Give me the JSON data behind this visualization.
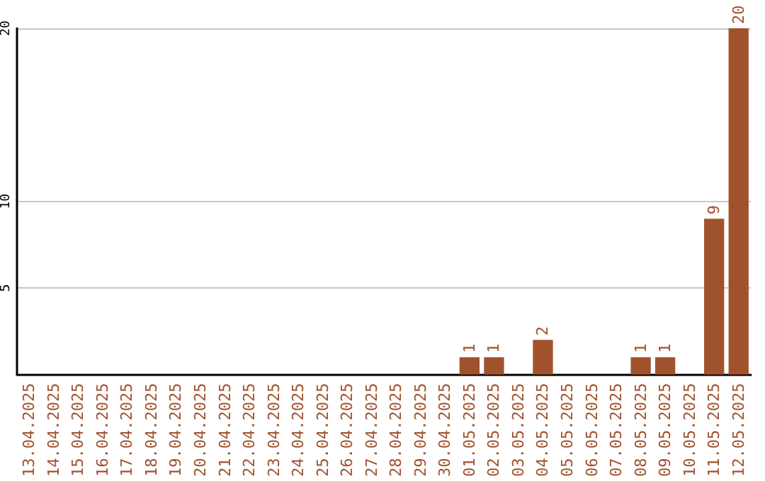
{
  "chart_data": {
    "type": "bar",
    "categories": [
      "13.04.2025",
      "14.04.2025",
      "15.04.2025",
      "16.04.2025",
      "17.04.2025",
      "18.04.2025",
      "19.04.2025",
      "20.04.2025",
      "21.04.2025",
      "22.04.2025",
      "23.04.2025",
      "24.04.2025",
      "25.04.2025",
      "26.04.2025",
      "27.04.2025",
      "28.04.2025",
      "29.04.2025",
      "30.04.2025",
      "01.05.2025",
      "02.05.2025",
      "03.05.2025",
      "04.05.2025",
      "05.05.2025",
      "06.05.2025",
      "07.05.2025",
      "08.05.2025",
      "09.05.2025",
      "10.05.2025",
      "11.05.2025",
      "12.05.2025"
    ],
    "values": [
      0,
      0,
      0,
      0,
      0,
      0,
      0,
      0,
      0,
      0,
      0,
      0,
      0,
      0,
      0,
      0,
      0,
      0,
      1,
      1,
      0,
      2,
      0,
      0,
      0,
      1,
      1,
      0,
      9,
      20
    ],
    "value_labels": [
      null,
      null,
      null,
      null,
      null,
      null,
      null,
      null,
      null,
      null,
      null,
      null,
      null,
      null,
      null,
      null,
      null,
      null,
      "1",
      "1",
      null,
      "2",
      null,
      null,
      null,
      "1",
      "1",
      null,
      "9",
      "20"
    ],
    "color": "#a0522d",
    "ylim": [
      0,
      20
    ],
    "yticks": [
      5,
      10,
      20
    ],
    "grid": "y"
  }
}
